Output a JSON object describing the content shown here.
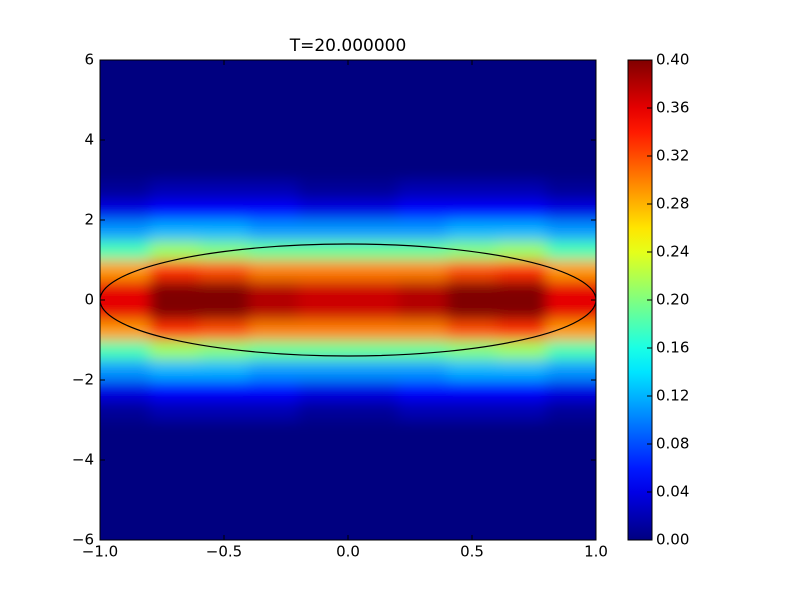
{
  "chart_data": {
    "type": "heatmap",
    "title": "T=20.000000",
    "xlim": [
      -1,
      1
    ],
    "ylim": [
      -6,
      6
    ],
    "xticks": [
      {
        "value": -1,
        "label": "−1.0"
      },
      {
        "value": -0.5,
        "label": "−0.5"
      },
      {
        "value": 0,
        "label": "0.0"
      },
      {
        "value": 0.5,
        "label": "0.5"
      },
      {
        "value": 1,
        "label": "1.0"
      }
    ],
    "yticks": [
      {
        "value": -6,
        "label": "−6"
      },
      {
        "value": -4,
        "label": "−4"
      },
      {
        "value": -2,
        "label": "−2"
      },
      0,
      2,
      4,
      6
    ],
    "xbins": [
      -1,
      -0.8,
      -0.6,
      -0.4,
      -0.2,
      0,
      0.2,
      0.4,
      0.6,
      0.8,
      1
    ],
    "ybins": [
      -6,
      -5.5,
      -5,
      -4.5,
      -4,
      -3.5,
      -3,
      -2.5,
      -2,
      -1.5,
      -1,
      -0.5,
      0,
      0.5,
      1,
      1.5,
      2,
      2.5,
      3,
      3.5,
      4,
      4.5,
      5,
      5.5,
      6
    ],
    "z": [
      [
        0,
        0,
        0,
        0,
        0,
        0,
        0,
        0,
        0,
        0
      ],
      [
        0,
        0,
        0,
        0,
        0,
        0,
        0,
        0,
        0,
        0
      ],
      [
        0,
        0,
        0,
        0,
        0,
        0,
        0,
        0,
        0,
        0
      ],
      [
        0,
        0,
        0,
        0,
        0,
        0,
        0,
        0,
        0,
        0
      ],
      [
        0,
        0,
        0,
        0,
        0,
        0,
        0,
        0,
        0,
        0
      ],
      [
        0,
        0,
        0,
        0,
        0,
        0,
        0,
        0,
        0,
        0
      ],
      [
        0.01,
        0.02,
        0.02,
        0.02,
        0.01,
        0.01,
        0.02,
        0.02,
        0.02,
        0.01
      ],
      [
        0.04,
        0.05,
        0.05,
        0.05,
        0.04,
        0.04,
        0.05,
        0.05,
        0.05,
        0.04
      ],
      [
        0.11,
        0.12,
        0.12,
        0.11,
        0.11,
        0.11,
        0.11,
        0.12,
        0.12,
        0.11
      ],
      [
        0.18,
        0.21,
        0.2,
        0.19,
        0.19,
        0.19,
        0.19,
        0.2,
        0.21,
        0.18
      ],
      [
        0.29,
        0.33,
        0.32,
        0.3,
        0.3,
        0.3,
        0.3,
        0.32,
        0.33,
        0.29
      ],
      [
        0.36,
        0.41,
        0.4,
        0.38,
        0.37,
        0.37,
        0.38,
        0.4,
        0.41,
        0.36
      ],
      [
        0.36,
        0.41,
        0.4,
        0.38,
        0.37,
        0.37,
        0.38,
        0.4,
        0.41,
        0.36
      ],
      [
        0.29,
        0.33,
        0.32,
        0.3,
        0.3,
        0.3,
        0.3,
        0.32,
        0.33,
        0.29
      ],
      [
        0.18,
        0.21,
        0.2,
        0.19,
        0.19,
        0.19,
        0.19,
        0.2,
        0.21,
        0.18
      ],
      [
        0.11,
        0.12,
        0.12,
        0.11,
        0.11,
        0.11,
        0.11,
        0.12,
        0.12,
        0.11
      ],
      [
        0.04,
        0.05,
        0.05,
        0.05,
        0.04,
        0.04,
        0.05,
        0.05,
        0.05,
        0.04
      ],
      [
        0.01,
        0.02,
        0.02,
        0.02,
        0.01,
        0.01,
        0.02,
        0.02,
        0.02,
        0.01
      ],
      [
        0,
        0,
        0,
        0,
        0,
        0,
        0,
        0,
        0,
        0
      ],
      [
        0,
        0,
        0,
        0,
        0,
        0,
        0,
        0,
        0,
        0
      ],
      [
        0,
        0,
        0,
        0,
        0,
        0,
        0,
        0,
        0,
        0
      ],
      [
        0,
        0,
        0,
        0,
        0,
        0,
        0,
        0,
        0,
        0
      ],
      [
        0,
        0,
        0,
        0,
        0,
        0,
        0,
        0,
        0,
        0
      ],
      [
        0,
        0,
        0,
        0,
        0,
        0,
        0,
        0,
        0,
        0
      ]
    ],
    "ellipse": {
      "cx": 0,
      "cy": 0,
      "rx": 1,
      "ry": 1.4
    },
    "clim": [
      0,
      0.4
    ],
    "cticks": [
      {
        "value": 0,
        "label": "0.00"
      },
      {
        "value": 0.04,
        "label": "0.04"
      },
      {
        "value": 0.08,
        "label": "0.08"
      },
      {
        "value": 0.12,
        "label": "0.12"
      },
      {
        "value": 0.16,
        "label": "0.16"
      },
      {
        "value": 0.2,
        "label": "0.20"
      },
      {
        "value": 0.24,
        "label": "0.24"
      },
      {
        "value": 0.28,
        "label": "0.28"
      },
      {
        "value": 0.32,
        "label": "0.32"
      },
      {
        "value": 0.36,
        "label": "0.36"
      },
      {
        "value": 0.4,
        "label": "0.40"
      }
    ],
    "colormap": "jet"
  }
}
